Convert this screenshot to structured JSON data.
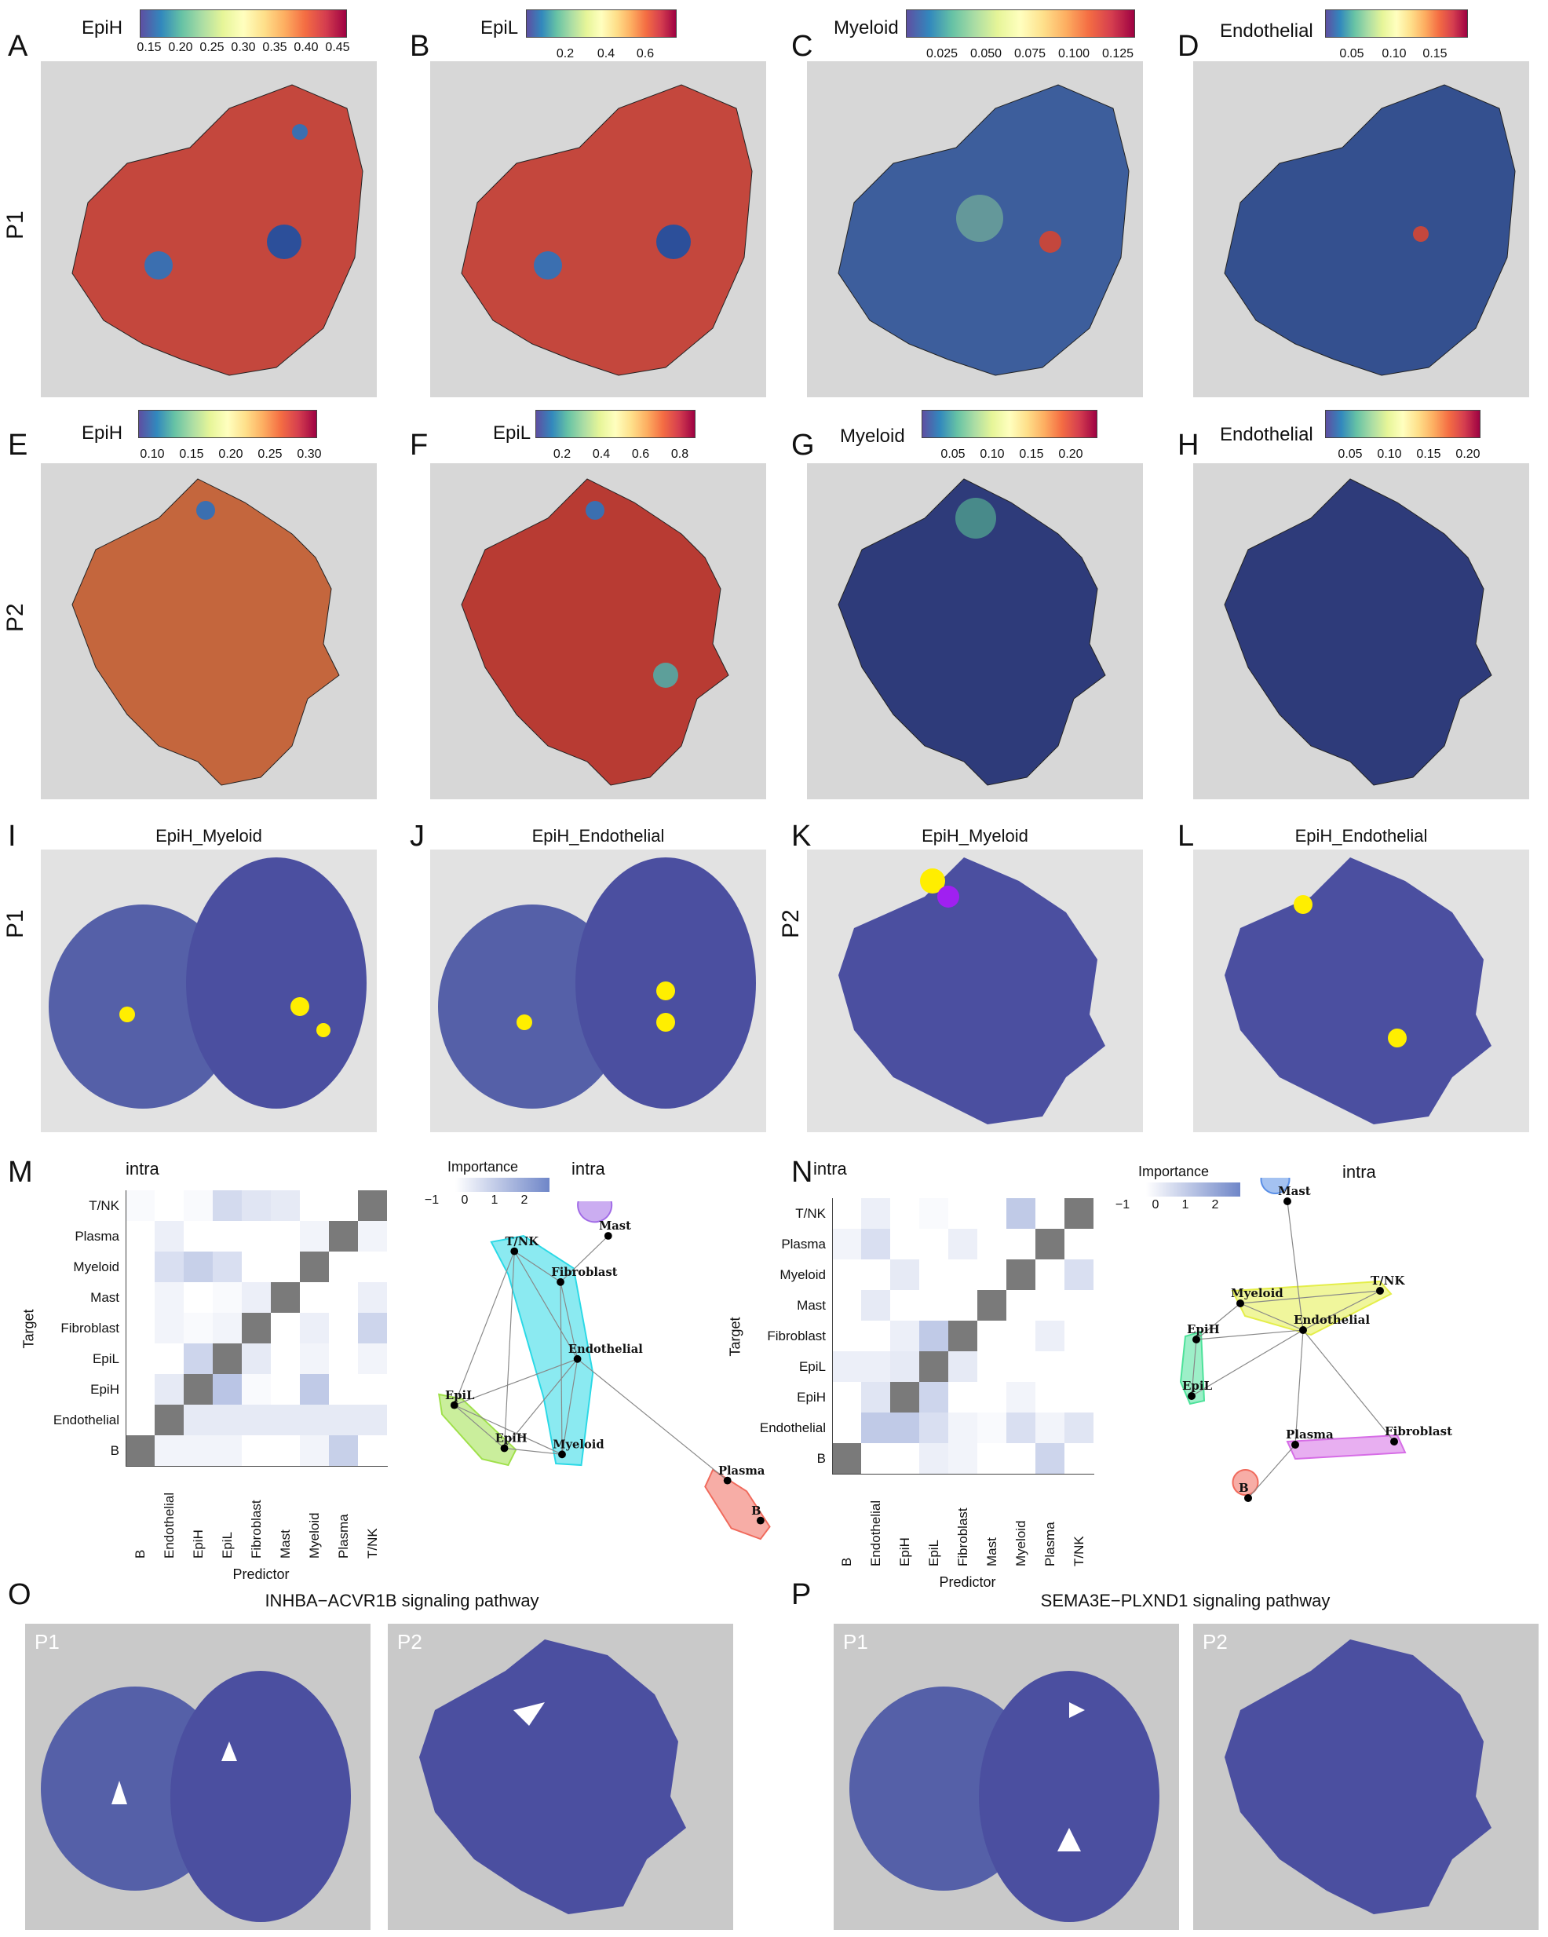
{
  "colors": {
    "tissue_bg": "#d7d7d7",
    "he_purple": "#4b4fa0",
    "spot_yellow": "#ffee00",
    "spot_purple": "#a020f0",
    "heat_dark": "#7a7a7a",
    "heat_blue": "#6f86c8"
  },
  "row_labels": {
    "p1": "P1",
    "p2": "P2"
  },
  "panels": {
    "A": {
      "letter": "A",
      "label": "EpiH",
      "ticks": [
        "0.15",
        "0.20",
        "0.25",
        "0.30",
        "0.35",
        "0.40",
        "0.45"
      ]
    },
    "B": {
      "letter": "B",
      "label": "EpiL",
      "ticks": [
        "0.2",
        "0.4",
        "0.6"
      ]
    },
    "C": {
      "letter": "C",
      "label": "Myeloid",
      "ticks": [
        "0.025",
        "0.050",
        "0.075",
        "0.100",
        "0.125"
      ]
    },
    "D": {
      "letter": "D",
      "label": "Endothelial",
      "ticks": [
        "0.05",
        "0.10",
        "0.15"
      ]
    },
    "E": {
      "letter": "E",
      "label": "EpiH",
      "ticks": [
        "0.10",
        "0.15",
        "0.20",
        "0.25",
        "0.30"
      ]
    },
    "F": {
      "letter": "F",
      "label": "EpiL",
      "ticks": [
        "0.2",
        "0.4",
        "0.6",
        "0.8"
      ]
    },
    "G": {
      "letter": "G",
      "label": "Myeloid",
      "ticks": [
        "0.05",
        "0.10",
        "0.15",
        "0.20"
      ]
    },
    "H": {
      "letter": "H",
      "label": "Endothelial",
      "ticks": [
        "0.05",
        "0.10",
        "0.15",
        "0.20"
      ]
    },
    "I": {
      "letter": "I",
      "title": "EpiH_Myeloid"
    },
    "J": {
      "letter": "J",
      "title": "EpiH_Endothelial"
    },
    "K": {
      "letter": "K",
      "title": "EpiH_Myeloid"
    },
    "L": {
      "letter": "L",
      "title": "EpiH_Endothelial"
    },
    "M": {
      "letter": "M",
      "heat_title": "intra",
      "net_title": "intra"
    },
    "N": {
      "letter": "N",
      "heat_title": "intra",
      "net_title": "intra"
    },
    "O": {
      "letter": "O",
      "title": "INHBA−ACVR1B signaling pathway",
      "sub": [
        "P1",
        "P2"
      ]
    },
    "P": {
      "letter": "P",
      "title": "SEMA3E−PLXND1 signaling pathway",
      "sub": [
        "P1",
        "P2"
      ]
    }
  },
  "importance_legend": {
    "title": "Importance",
    "ticks": [
      "−1",
      "0",
      "1",
      "2"
    ]
  },
  "heatmap_axes": {
    "x_title": "Predictor",
    "y_title": "Target"
  },
  "chart_data": [
    {
      "type": "heatmap",
      "panel": "M",
      "title": "intra",
      "xlabel": "Predictor",
      "ylabel": "Target",
      "predictors": [
        "B",
        "Endothelial",
        "EpiH",
        "EpiL",
        "Fibroblast",
        "Mast",
        "Myeloid",
        "Plasma",
        "T/NK"
      ],
      "targets": [
        "T/NK",
        "Plasma",
        "Myeloid",
        "Mast",
        "Fibroblast",
        "EpiL",
        "EpiH",
        "Endothelial",
        "B"
      ],
      "legend": {
        "title": "Importance",
        "range": [
          -1,
          2.3
        ]
      },
      "values": [
        [
          0.1,
          0,
          0.1,
          0.7,
          0.5,
          0.4,
          0,
          0,
          "self"
        ],
        [
          0,
          0.3,
          0,
          0,
          0,
          0,
          0.2,
          "self",
          0.2
        ],
        [
          0,
          0.6,
          0.9,
          0.6,
          0,
          0,
          "self",
          0,
          0
        ],
        [
          0,
          0.2,
          0,
          0.1,
          0.3,
          "self",
          0,
          0,
          0.3
        ],
        [
          0,
          0.2,
          0.1,
          0.2,
          "self",
          0,
          0.3,
          0,
          0.8
        ],
        [
          0,
          0,
          0.8,
          "self",
          0.4,
          0,
          0.2,
          0,
          0.2
        ],
        [
          0,
          0.4,
          "self",
          1.1,
          0.1,
          0,
          1.0,
          0,
          0
        ],
        [
          0,
          "self",
          0.4,
          0.4,
          0.4,
          0.4,
          0.4,
          0.4,
          0.4
        ],
        [
          "self",
          0.2,
          0.2,
          0.2,
          0,
          0,
          0.2,
          0.9,
          0
        ]
      ]
    },
    {
      "type": "heatmap",
      "panel": "N",
      "title": "intra",
      "xlabel": "Predictor",
      "ylabel": "Target",
      "predictors": [
        "B",
        "Endothelial",
        "EpiH",
        "EpiL",
        "Fibroblast",
        "Mast",
        "Myeloid",
        "Plasma",
        "T/NK"
      ],
      "targets": [
        "T/NK",
        "Plasma",
        "Myeloid",
        "Mast",
        "Fibroblast",
        "EpiL",
        "EpiH",
        "Endothelial",
        "B"
      ],
      "legend": {
        "title": "Importance",
        "range": [
          -1,
          2.3
        ]
      },
      "values": [
        [
          0,
          0.3,
          0,
          0.1,
          0,
          0,
          1.0,
          0,
          "self"
        ],
        [
          0.2,
          0.6,
          0,
          0,
          0.3,
          0,
          0,
          "self",
          0
        ],
        [
          0,
          0,
          0.4,
          0,
          0,
          0,
          "self",
          0,
          0.6
        ],
        [
          0,
          0.4,
          0,
          0,
          0,
          "self",
          0,
          0,
          0
        ],
        [
          0,
          0,
          0.3,
          1.0,
          "self",
          0,
          0,
          0.3,
          0
        ],
        [
          0.3,
          0.3,
          0.4,
          "self",
          0.4,
          0,
          0,
          0,
          0
        ],
        [
          0,
          0.5,
          "self",
          0.8,
          0,
          0,
          0.2,
          0,
          0
        ],
        [
          0,
          1.0,
          1.0,
          0.6,
          0.2,
          0.1,
          0.6,
          0.2,
          0.5
        ],
        [
          "self",
          0,
          0,
          0.3,
          0.2,
          0,
          0,
          0.8,
          0
        ]
      ]
    }
  ],
  "networks": {
    "M": {
      "nodes": [
        {
          "name": "T/NK"
        },
        {
          "name": "Mast"
        },
        {
          "name": "Fibroblast"
        },
        {
          "name": "Endothelial"
        },
        {
          "name": "EpiL"
        },
        {
          "name": "EpiH"
        },
        {
          "name": "Myeloid"
        },
        {
          "name": "Plasma"
        },
        {
          "name": "B"
        }
      ],
      "groups": [
        {
          "members": [
            "T/NK",
            "Fibroblast",
            "Endothelial",
            "Myeloid"
          ],
          "color": "#2bd9e6"
        },
        {
          "members": [
            "Mast"
          ],
          "color": "#a06ae6"
        },
        {
          "members": [
            "EpiL",
            "EpiH"
          ],
          "color": "#9fe04a"
        },
        {
          "members": [
            "Plasma",
            "B"
          ],
          "color": "#f06a5c"
        }
      ]
    },
    "N": {
      "nodes": [
        {
          "name": "Mast"
        },
        {
          "name": "T/NK"
        },
        {
          "name": "Myeloid"
        },
        {
          "name": "Endothelial"
        },
        {
          "name": "EpiH"
        },
        {
          "name": "EpiL"
        },
        {
          "name": "Plasma"
        },
        {
          "name": "Fibroblast"
        },
        {
          "name": "B"
        }
      ],
      "groups": [
        {
          "members": [
            "Mast"
          ],
          "color": "#5a8fe6"
        },
        {
          "members": [
            "Myeloid",
            "T/NK",
            "Endothelial"
          ],
          "color": "#e4ee4a"
        },
        {
          "members": [
            "EpiH",
            "EpiL"
          ],
          "color": "#4de29a"
        },
        {
          "members": [
            "Plasma",
            "Fibroblast"
          ],
          "color": "#d66de6"
        },
        {
          "members": [
            "B"
          ],
          "color": "#f06a5c"
        }
      ]
    }
  }
}
